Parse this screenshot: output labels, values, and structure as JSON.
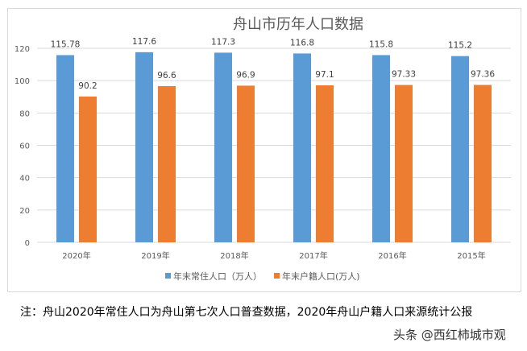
{
  "chart_data": {
    "type": "bar",
    "title": "舟山市历年人口数据",
    "categories": [
      "2020年",
      "2019年",
      "2018年",
      "2017年",
      "2016年",
      "2015年"
    ],
    "series": [
      {
        "name": "年末常住人口（万人）",
        "color": "#5b9bd5",
        "values": [
          115.78,
          117.6,
          117.3,
          116.8,
          115.8,
          115.2
        ],
        "labels": [
          "115.78",
          "117.6",
          "117.3",
          "116.8",
          "115.8",
          "115.2"
        ]
      },
      {
        "name": "年末户籍人口(万人)",
        "color": "#ed7d31",
        "values": [
          90.2,
          96.6,
          96.9,
          97.1,
          97.33,
          97.36
        ],
        "labels": [
          "90.2",
          "96.6",
          "96.9",
          "97.1",
          "97.33",
          "97.36"
        ]
      }
    ],
    "ylim": [
      0,
      120
    ],
    "yticks": [
      "0",
      "20",
      "40",
      "60",
      "80",
      "100",
      "120"
    ],
    "grid": true,
    "legend": "bottom"
  },
  "note": "注：舟山2020年常住人口为舟山第七次人口普查数据，2020年舟山户籍人口来源统计公报",
  "watermark": "头条 @西红柿城市观"
}
